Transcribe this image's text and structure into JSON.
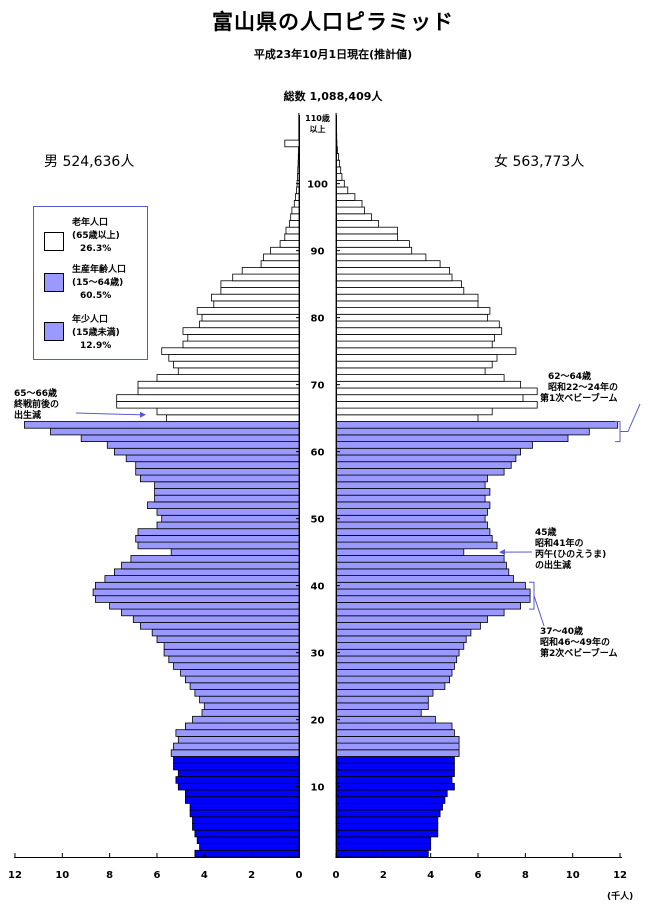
{
  "title": "富山県の人口ピラミッド",
  "subtitle": "平成23年10月1日現在(推計値)",
  "total_label": "総数 1,088,409人",
  "male_label": "男 524,636人",
  "female_label": "女 563,773人",
  "legend": [
    {
      "lines": [
        "老年人口",
        "(65歳以上)",
        "26.3%"
      ],
      "color": "#ffffff"
    },
    {
      "lines": [
        "生産年齢人口",
        "(15～64歳)",
        "60.5%"
      ],
      "color": "#9999ff"
    },
    {
      "lines": [
        "年少人口",
        "(15歳未満)",
        "12.9%"
      ],
      "color": "#9999ff"
    }
  ],
  "annotations": {
    "a6566": [
      "65～66歳",
      "終戦前後の",
      "出生減"
    ],
    "a6264": [
      "62～64歳",
      "昭和22～24年の",
      "第1次ベビーブーム"
    ],
    "a45": [
      "45歳",
      "昭和41年の",
      "丙午(ひのえうま)",
      "の出生減"
    ],
    "a3740": [
      "37～40歳",
      "昭和46～49年の",
      "第2次ベビーブーム"
    ]
  },
  "unit_label": "(千人)",
  "chart_data": {
    "type": "bar",
    "orientation": "horizontal-pyramid",
    "top_age_label": [
      "110歳",
      "以上"
    ],
    "age_ticks": [
      10,
      20,
      30,
      40,
      50,
      60,
      70,
      80,
      90,
      100
    ],
    "x_ticks_male": [
      "12",
      "10",
      "8",
      "6",
      "4",
      "2",
      "0"
    ],
    "x_ticks_female": [
      "0",
      "2",
      "4",
      "6",
      "8",
      "10",
      "12"
    ],
    "xlim": [
      0,
      12
    ],
    "colors": {
      "young": "#0000ff",
      "working": "#9999ff",
      "elderly": "#ffffff"
    },
    "ages": [
      0,
      1,
      2,
      3,
      4,
      5,
      6,
      7,
      8,
      9,
      10,
      11,
      12,
      13,
      14,
      15,
      16,
      17,
      18,
      19,
      20,
      21,
      22,
      23,
      24,
      25,
      26,
      27,
      28,
      29,
      30,
      31,
      32,
      33,
      34,
      35,
      36,
      37,
      38,
      39,
      40,
      41,
      42,
      43,
      44,
      45,
      46,
      47,
      48,
      49,
      50,
      51,
      52,
      53,
      54,
      55,
      56,
      57,
      58,
      59,
      60,
      61,
      62,
      63,
      64,
      65,
      66,
      67,
      68,
      69,
      70,
      71,
      72,
      73,
      74,
      75,
      76,
      77,
      78,
      79,
      80,
      81,
      82,
      83,
      84,
      85,
      86,
      87,
      88,
      89,
      90,
      91,
      92,
      93,
      94,
      95,
      96,
      97,
      98,
      99,
      100,
      101,
      102,
      103,
      104,
      105,
      106,
      107,
      108,
      109,
      110
    ],
    "series": [
      {
        "name": "男",
        "values": [
          4.4,
          4.2,
          4.3,
          4.4,
          4.5,
          4.5,
          4.6,
          4.6,
          4.8,
          4.8,
          5.1,
          5.2,
          5.1,
          5.3,
          5.3,
          5.4,
          5.3,
          5.1,
          5.2,
          4.8,
          4.5,
          4.1,
          4.0,
          4.2,
          4.4,
          4.6,
          4.8,
          5.0,
          5.3,
          5.5,
          5.7,
          5.7,
          6.0,
          6.2,
          6.7,
          7.0,
          7.5,
          8.0,
          8.6,
          8.7,
          8.6,
          8.2,
          7.8,
          7.5,
          7.1,
          5.4,
          6.8,
          6.9,
          6.8,
          6.0,
          5.8,
          6.0,
          6.4,
          6.1,
          6.1,
          6.1,
          6.7,
          6.9,
          6.9,
          7.3,
          7.8,
          8.1,
          9.2,
          10.5,
          11.6,
          5.6,
          6.0,
          7.7,
          7.7,
          6.8,
          6.8,
          6.0,
          5.1,
          5.3,
          5.5,
          5.8,
          4.9,
          4.7,
          4.9,
          4.2,
          4.1,
          4.3,
          3.6,
          3.7,
          3.3,
          3.3,
          2.8,
          2.4,
          1.6,
          1.5,
          1.2,
          0.8,
          0.6,
          0.55,
          0.4,
          0.35,
          0.3,
          0.2,
          0.15,
          0.1,
          0.08,
          0.06,
          0.05,
          0.04,
          0.03,
          0.02,
          0.6,
          0.01,
          0.01,
          0.01,
          0.01
        ]
      },
      {
        "name": "女",
        "values": [
          3.9,
          4.0,
          4.0,
          4.3,
          4.3,
          4.3,
          4.4,
          4.5,
          4.6,
          4.7,
          5.0,
          4.9,
          5.0,
          5.0,
          5.0,
          5.2,
          5.2,
          5.2,
          5.0,
          4.9,
          4.2,
          3.6,
          3.9,
          3.9,
          4.1,
          4.6,
          4.8,
          4.9,
          5.0,
          5.1,
          5.2,
          5.4,
          5.5,
          5.7,
          6.1,
          6.4,
          7.1,
          7.8,
          8.2,
          8.2,
          8.0,
          7.5,
          7.3,
          7.2,
          7.1,
          5.4,
          6.8,
          6.6,
          6.5,
          6.4,
          6.3,
          6.4,
          6.5,
          6.3,
          6.5,
          6.3,
          6.4,
          7.1,
          7.4,
          7.6,
          7.8,
          8.3,
          9.8,
          10.7,
          11.9,
          6.0,
          6.6,
          8.5,
          7.9,
          8.5,
          7.8,
          7.1,
          6.3,
          6.6,
          6.8,
          7.6,
          6.6,
          6.7,
          7.0,
          6.9,
          6.4,
          6.5,
          6.0,
          6.0,
          5.4,
          5.3,
          4.9,
          4.8,
          4.4,
          3.8,
          3.2,
          3.1,
          2.6,
          2.6,
          1.8,
          1.5,
          1.2,
          1.1,
          0.8,
          0.5,
          0.35,
          0.25,
          0.2,
          0.15,
          0.1,
          0.06,
          0.04,
          0.03,
          0.02,
          0.01,
          0.01
        ]
      }
    ]
  }
}
